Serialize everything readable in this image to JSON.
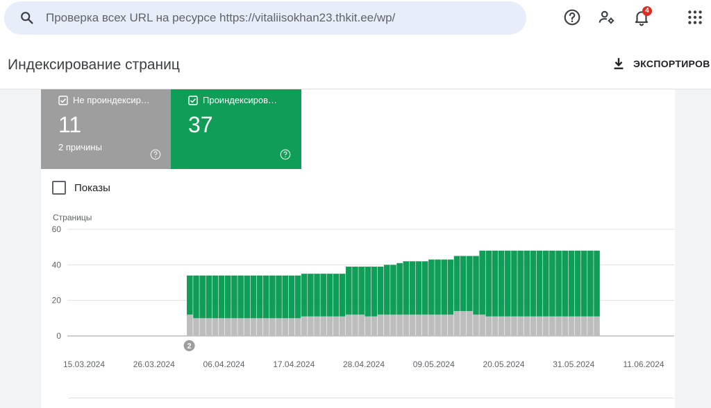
{
  "search": {
    "placeholder": "Проверка всех URL на ресурсе https://vitaliisokhan23.thkit.ee/wp/",
    "icon": "search-icon"
  },
  "header": {
    "notifications_count": "4",
    "icons": [
      "help-icon",
      "manage-users-icon",
      "notifications-icon",
      "apps-grid-icon"
    ]
  },
  "page": {
    "title": "Индексирование страниц",
    "export_label": "ЭКСПОРТИРОВ"
  },
  "tiles": [
    {
      "label": "Не проиндексир…",
      "value": "11",
      "sub": "2 причины",
      "color": "#9e9e9e"
    },
    {
      "label": "Проиндексиров…",
      "value": "37",
      "sub": "",
      "color": "#0f9d58"
    }
  ],
  "shows_label": "Показы",
  "chart_data": {
    "type": "bar",
    "stacked": true,
    "ylabel": "Страницы",
    "ylim": [
      0,
      60
    ],
    "yticks": [
      0,
      20,
      40,
      60
    ],
    "xticks": [
      "15.03.2024",
      "26.03.2024",
      "06.04.2024",
      "17.04.2024",
      "28.04.2024",
      "09.05.2024",
      "20.05.2024",
      "31.05.2024",
      "11.06.2024"
    ],
    "x_start": "15.03.2024",
    "x_end": "11.06.2024",
    "annotation": {
      "label": "2",
      "date": "31.03.2024"
    },
    "grid": true,
    "series": [
      {
        "name": "Не проиндексированные",
        "color": "#bdbdbd",
        "values": [
          0,
          0,
          0,
          0,
          0,
          0,
          0,
          0,
          0,
          0,
          0,
          0,
          0,
          0,
          0,
          0,
          12,
          10,
          10,
          10,
          10,
          10,
          10,
          10,
          10,
          10,
          10,
          10,
          10,
          10,
          10,
          10,
          10,
          10,
          11,
          11,
          11,
          11,
          11,
          11,
          11,
          12,
          12,
          12,
          11,
          11,
          12,
          12,
          12,
          12,
          12,
          12,
          12,
          12,
          12,
          12,
          12,
          12,
          14,
          14,
          14,
          12,
          12,
          11,
          11,
          11,
          11,
          11,
          11,
          11,
          11,
          11,
          11,
          11,
          11,
          11,
          11,
          11,
          11,
          11,
          11
        ]
      },
      {
        "name": "Проиндексированные",
        "color": "#0f9d58",
        "values": [
          0,
          0,
          0,
          0,
          0,
          0,
          0,
          0,
          0,
          0,
          0,
          0,
          0,
          0,
          0,
          0,
          22,
          24,
          24,
          24,
          24,
          24,
          24,
          24,
          24,
          24,
          24,
          24,
          24,
          24,
          24,
          24,
          24,
          24,
          24,
          24,
          24,
          24,
          24,
          24,
          24,
          27,
          27,
          27,
          28,
          28,
          27,
          28,
          28,
          29,
          30,
          30,
          30,
          30,
          31,
          31,
          31,
          31,
          31,
          31,
          31,
          33,
          36,
          37,
          37,
          37,
          37,
          37,
          37,
          37,
          37,
          37,
          37,
          37,
          37,
          37,
          37,
          37,
          37,
          37,
          37
        ]
      }
    ]
  }
}
